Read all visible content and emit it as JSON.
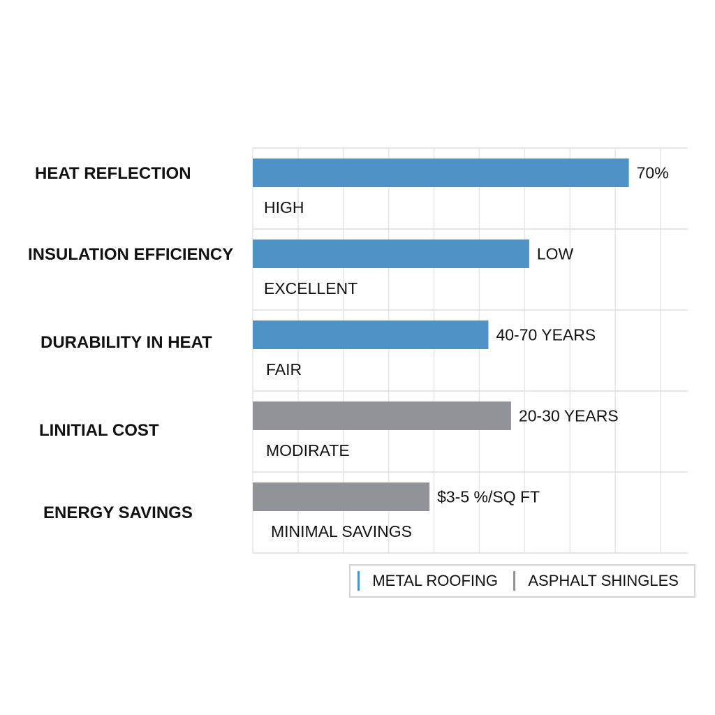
{
  "chart_data": {
    "type": "bar",
    "orientation": "horizontal",
    "title": "",
    "xlabel": "",
    "ylabel": "",
    "xlim": [
      0,
      9.6
    ],
    "grid": true,
    "categories": [
      "HEAT REFLECTION",
      "INSULATION EFFICIENCY",
      "DURABILITY IN HEAT",
      "LINITIAL COST",
      "ENERGY SAVINGS"
    ],
    "values": [
      8.3,
      6.1,
      5.2,
      5.7,
      3.9
    ],
    "bar_series": [
      "Metal Roofing",
      "Metal Roofing",
      "Metal Roofing",
      "Asphalt Shingles",
      "Asphalt Shingles"
    ],
    "value_labels": [
      "70%",
      "LOW",
      "40-70 YEARS",
      "20-30 YEARS",
      "$3-5 %/SQ FT"
    ],
    "sub_labels": [
      "HIGH",
      "EXCELLENT",
      "FAIR",
      "MODIRATE",
      "MINIMAL SAVINGS"
    ],
    "legend": {
      "placement": "bottom-right",
      "entries": [
        {
          "label": "METAL ROOFING",
          "color": "#4e93c5"
        },
        {
          "label": "ASPHALT SHINGLES",
          "color": "#909398"
        }
      ]
    }
  }
}
